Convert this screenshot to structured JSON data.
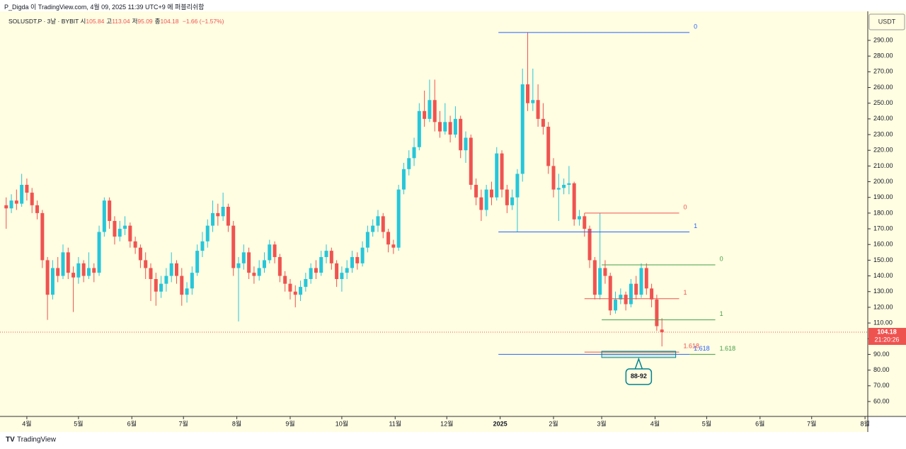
{
  "header": {
    "publisher": "P_Digda 이 TradingView.com, 4월 09, 2025 11:39 UTC+9 에 퍼블리쉬함",
    "footer": "TradingView"
  },
  "chart_data": {
    "type": "candlestick",
    "symbol": "SOLUSDT.P · 3날 · BYBIT",
    "ohlc_labels": [
      "시",
      "고",
      "저",
      "종"
    ],
    "change": "−1.66 (−1.57%)",
    "currency": "USDT",
    "countdown": "21:20:26",
    "up_color": "#26c6da",
    "down_color": "#ef5350",
    "x": [
      -12,
      -9,
      -6,
      -3,
      0,
      3,
      6,
      9,
      12,
      15,
      18,
      21,
      24,
      27,
      30,
      33,
      36,
      39,
      42,
      45,
      48,
      51,
      54,
      57,
      60,
      63,
      66,
      69,
      72,
      75,
      78,
      81,
      84,
      87,
      90,
      93,
      96,
      99,
      102,
      105,
      108,
      111,
      114,
      117,
      120,
      123,
      126,
      129,
      132,
      135,
      138,
      141,
      144,
      147,
      150,
      153,
      156,
      159,
      162,
      165,
      168,
      171,
      174,
      177,
      180,
      183,
      186,
      189,
      192,
      195,
      198,
      201,
      204,
      207,
      210,
      213,
      216,
      219,
      222,
      225,
      228,
      231,
      234,
      237,
      240,
      243,
      246,
      249,
      252,
      255,
      258,
      261,
      264,
      267,
      270,
      273,
      276,
      279,
      282,
      285,
      288,
      291,
      294,
      297,
      300,
      303,
      306,
      309,
      312,
      315,
      318,
      321,
      324,
      327,
      330,
      333,
      336,
      339,
      342,
      345,
      348,
      351,
      354,
      357,
      360,
      363,
      366,
      369
    ],
    "open": [
      185,
      183,
      188,
      186,
      198,
      193,
      185,
      180,
      150,
      128,
      145,
      140,
      155,
      142,
      139,
      148,
      140,
      145,
      142,
      168,
      188,
      175,
      165,
      170,
      172,
      162,
      158,
      150,
      145,
      138,
      130,
      135,
      140,
      148,
      140,
      128,
      132,
      142,
      156,
      162,
      172,
      180,
      178,
      184,
      172,
      145,
      148,
      155,
      142,
      140,
      145,
      150,
      160,
      152,
      140,
      135,
      130,
      128,
      133,
      138,
      145,
      142,
      152,
      156,
      148,
      138,
      142,
      145,
      152,
      148,
      158,
      168,
      172,
      178,
      168,
      160,
      158,
      195,
      208,
      215,
      222,
      245,
      240,
      252,
      238,
      232,
      238,
      230,
      240,
      220,
      228,
      198,
      190,
      182,
      195,
      190,
      218,
      195,
      185,
      190,
      205,
      262,
      250,
      252,
      240,
      235,
      210,
      195,
      196,
      198,
      199,
      176,
      178,
      170,
      150,
      128,
      145,
      140,
      118,
      125,
      128,
      122,
      135,
      128,
      145,
      132,
      125,
      105.84
    ],
    "high": [
      190,
      192,
      195,
      205,
      202,
      196,
      188,
      182,
      152,
      150,
      152,
      160,
      158,
      146,
      152,
      150,
      155,
      148,
      172,
      190,
      190,
      178,
      175,
      178,
      174,
      165,
      160,
      155,
      148,
      142,
      140,
      145,
      155,
      150,
      145,
      136,
      146,
      160,
      168,
      176,
      188,
      186,
      193,
      186,
      175,
      152,
      160,
      158,
      146,
      150,
      155,
      163,
      162,
      154,
      143,
      138,
      134,
      137,
      142,
      148,
      150,
      156,
      160,
      158,
      150,
      146,
      150,
      156,
      155,
      162,
      172,
      176,
      182,
      180,
      170,
      163,
      198,
      212,
      220,
      228,
      250,
      258,
      265,
      265,
      245,
      250,
      242,
      248,
      242,
      232,
      230,
      202,
      195,
      198,
      200,
      222,
      220,
      198,
      195,
      208,
      272,
      295,
      272,
      262,
      250,
      238,
      215,
      205,
      202,
      210,
      200,
      182,
      180,
      172,
      152,
      180,
      150,
      142,
      130,
      132,
      130,
      138,
      140,
      148,
      148,
      135,
      128,
      113.04
    ],
    "low": [
      170,
      180,
      182,
      184,
      188,
      180,
      176,
      145,
      112,
      125,
      136,
      138,
      138,
      117,
      135,
      136,
      138,
      136,
      140,
      165,
      170,
      160,
      162,
      166,
      158,
      154,
      145,
      138,
      124,
      121,
      126,
      130,
      136,
      135,
      121,
      123,
      128,
      140,
      152,
      158,
      168,
      172,
      175,
      168,
      140,
      111,
      144,
      138,
      135,
      137,
      142,
      148,
      148,
      136,
      130,
      125,
      120,
      124,
      130,
      135,
      138,
      140,
      148,
      144,
      133,
      130,
      138,
      142,
      144,
      146,
      155,
      165,
      168,
      164,
      155,
      154,
      156,
      192,
      204,
      210,
      220,
      235,
      238,
      232,
      228,
      230,
      225,
      228,
      215,
      212,
      195,
      185,
      175,
      178,
      185,
      188,
      190,
      180,
      182,
      168,
      200,
      245,
      245,
      235,
      230,
      205,
      190,
      175,
      192,
      192,
      172,
      172,
      165,
      145,
      125,
      125,
      135,
      115,
      116,
      122,
      118,
      120,
      125,
      126,
      128,
      120,
      105,
      95.09
    ],
    "close": [
      183,
      188,
      186,
      198,
      193,
      185,
      180,
      150,
      128,
      145,
      140,
      155,
      142,
      139,
      148,
      140,
      145,
      142,
      168,
      188,
      175,
      165,
      170,
      172,
      162,
      158,
      150,
      145,
      138,
      130,
      135,
      140,
      148,
      140,
      128,
      132,
      142,
      156,
      162,
      172,
      180,
      178,
      184,
      172,
      145,
      148,
      155,
      142,
      140,
      145,
      150,
      160,
      152,
      140,
      135,
      130,
      128,
      133,
      138,
      145,
      142,
      152,
      156,
      148,
      138,
      142,
      145,
      152,
      148,
      158,
      168,
      172,
      178,
      168,
      160,
      158,
      195,
      208,
      215,
      222,
      245,
      240,
      252,
      238,
      232,
      238,
      230,
      240,
      220,
      228,
      198,
      190,
      182,
      195,
      190,
      218,
      195,
      185,
      190,
      205,
      262,
      250,
      252,
      240,
      235,
      210,
      195,
      196,
      198,
      199,
      176,
      178,
      170,
      150,
      128,
      145,
      140,
      118,
      125,
      128,
      122,
      135,
      128,
      145,
      132,
      125,
      108,
      104.18
    ],
    "xlim": [
      -15.6,
      488.6
    ],
    "xticks": [
      {
        "value": 0,
        "label": "4월"
      },
      {
        "value": 30,
        "label": "5월"
      },
      {
        "value": 61,
        "label": "6월"
      },
      {
        "value": 91,
        "label": "7월"
      },
      {
        "value": 122,
        "label": "8월"
      },
      {
        "value": 153,
        "label": "9월"
      },
      {
        "value": 183,
        "label": "10월"
      },
      {
        "value": 214,
        "label": "11월"
      },
      {
        "value": 244,
        "label": "12월"
      },
      {
        "value": 275,
        "label": "2025"
      },
      {
        "value": 306,
        "label": "2월"
      },
      {
        "value": 334,
        "label": "3월"
      },
      {
        "value": 365,
        "label": "4월"
      },
      {
        "value": 395,
        "label": "5월"
      },
      {
        "value": 426,
        "label": "6월"
      },
      {
        "value": 456,
        "label": "7월"
      },
      {
        "value": 487,
        "label": "8월"
      }
    ],
    "ylim": [
      50.5,
      308.5
    ],
    "yticks": [
      {
        "value": 60,
        "label": "60.00"
      },
      {
        "value": 70,
        "label": "70.00"
      },
      {
        "value": 80,
        "label": "80.00"
      },
      {
        "value": 90,
        "label": "90.00"
      },
      {
        "value": 100,
        "label": "100.00"
      },
      {
        "value": 110,
        "label": "110.00"
      },
      {
        "value": 120,
        "label": "120.00"
      },
      {
        "value": 130,
        "label": "130.00"
      },
      {
        "value": 140,
        "label": "140.00"
      },
      {
        "value": 150,
        "label": "150.00"
      },
      {
        "value": 160,
        "label": "160.00"
      },
      {
        "value": 170,
        "label": "170.00"
      },
      {
        "value": 180,
        "label": "180.00"
      },
      {
        "value": 190,
        "label": "190.00"
      },
      {
        "value": 200,
        "label": "200.00"
      },
      {
        "value": 210,
        "label": "210.00"
      },
      {
        "value": 220,
        "label": "220.00"
      },
      {
        "value": 230,
        "label": "230.00"
      },
      {
        "value": 240,
        "label": "240.00"
      },
      {
        "value": 250,
        "label": "250.00"
      },
      {
        "value": 260,
        "label": "260.00"
      },
      {
        "value": 270,
        "label": "270.00"
      },
      {
        "value": 280,
        "label": "280.00"
      },
      {
        "value": 290,
        "label": "290.00"
      }
    ],
    "grid": false,
    "fib_levels": [
      {
        "ratio": 0,
        "price": 295,
        "start": 274,
        "end": 385,
        "color": "#2962ff"
      },
      {
        "ratio": 1,
        "price": 168,
        "start": 274,
        "end": 385,
        "color": "#2962ff"
      },
      {
        "ratio": 1.618,
        "price": 90,
        "start": 274,
        "end": 385,
        "color": "#2962ff"
      },
      {
        "ratio": 0,
        "price": 180,
        "start": 324,
        "end": 379,
        "color": "#ef5350"
      },
      {
        "ratio": 1,
        "price": 125.5,
        "start": 324,
        "end": 379,
        "color": "#ef5350"
      },
      {
        "ratio": 1.618,
        "price": 91.5,
        "start": 324,
        "end": 379,
        "color": "#ef5350"
      },
      {
        "ratio": 0,
        "price": 147,
        "start": 334,
        "end": 400,
        "color": "#43a047"
      },
      {
        "ratio": 1,
        "price": 112,
        "start": 334,
        "end": 400,
        "color": "#43a047"
      },
      {
        "ratio": 1.618,
        "price": 90,
        "start": 385,
        "end": 400,
        "color": "#43a047"
      }
    ],
    "zone": {
      "label": "88-92",
      "low": 88,
      "high": 92,
      "start": 334,
      "end": 377,
      "color": "#00838f"
    }
  }
}
